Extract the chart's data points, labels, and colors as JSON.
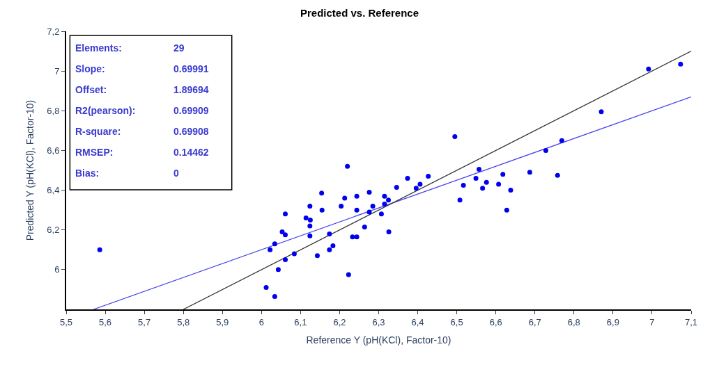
{
  "chart_data": {
    "type": "scatter",
    "title": "Predicted vs. Reference",
    "xlabel": "Reference Y (pH(KCl), Factor-10)",
    "ylabel": "Predicted Y (pH(KCl), Factor-10)",
    "xlim": [
      5.5,
      7.1
    ],
    "ylim": [
      5.8,
      7.2
    ],
    "xticks": [
      {
        "value": 5.5,
        "label": "5,5"
      },
      {
        "value": 5.6,
        "label": "5,6"
      },
      {
        "value": 5.7,
        "label": "5,7"
      },
      {
        "value": 5.8,
        "label": "5,8"
      },
      {
        "value": 5.9,
        "label": "5,9"
      },
      6,
      {
        "value": 6.1,
        "label": "6,1"
      },
      {
        "value": 6.2,
        "label": "6,2"
      },
      {
        "value": 6.3,
        "label": "6,3"
      },
      {
        "value": 6.4,
        "label": "6,4"
      },
      {
        "value": 6.5,
        "label": "6,5"
      },
      {
        "value": 6.6,
        "label": "6,6"
      },
      {
        "value": 6.7,
        "label": "6,7"
      },
      {
        "value": 6.8,
        "label": "6,8"
      },
      {
        "value": 6.9,
        "label": "6,9"
      },
      7,
      {
        "value": 7.1,
        "label": "7,1"
      }
    ],
    "yticks": [
      6,
      {
        "value": 6.2,
        "label": "6,2"
      },
      {
        "value": 6.4,
        "label": "6,4"
      },
      {
        "value": 6.6,
        "label": "6,6"
      },
      {
        "value": 6.8,
        "label": "6,8"
      },
      7,
      {
        "value": 7.2,
        "label": "7,2"
      }
    ],
    "marker": "circle",
    "annotations": [
      "Elements:",
      "29",
      "Slope:",
      "0.69991",
      "Offset:",
      "1.89694",
      "R2(pearson):",
      "0.69909",
      "R-square:",
      "0.69908",
      "RMSEP:",
      "0.14462",
      "Bias:",
      "0"
    ],
    "series": [
      {
        "type": "line",
        "marker": "none",
        "color": "#4444ee",
        "x": [
          5.57,
          7.1
        ],
        "values": [
          5.8,
          6.87
        ]
      },
      {
        "type": "line",
        "marker": "none",
        "color": "#333333",
        "x": [
          5.8,
          7.1
        ],
        "values": [
          5.8,
          7.1
        ]
      },
      {
        "color": "#0000ee",
        "x": [
          5.586,
          6.22,
          6.374,
          6.406,
          6.396,
          6.346,
          6.154,
          6.276,
          6.244,
          6.213,
          6.315,
          6.124,
          6.204,
          6.325,
          6.285,
          6.315,
          6.061,
          6.155,
          6.244,
          6.276,
          6.307,
          6.114,
          6.125,
          6.124,
          6.264,
          6.053,
          6.061,
          6.124,
          6.174,
          6.326,
          6.233,
          6.244,
          6.034,
          6.022,
          6.183,
          6.174,
          6.084,
          6.061,
          6.143,
          6.043,
          6.223,
          6.012,
          6.034,
          6.991,
          7.073,
          6.87,
          6.495,
          6.769,
          6.728,
          6.557,
          6.427,
          6.549,
          6.618,
          6.687,
          6.758,
          6.517,
          6.576,
          6.607,
          6.566,
          6.638,
          6.508,
          6.628
        ],
        "values": [
          6.1,
          6.52,
          6.46,
          6.43,
          6.41,
          6.414,
          6.385,
          6.39,
          6.37,
          6.36,
          6.37,
          6.32,
          6.32,
          6.35,
          6.32,
          6.33,
          6.28,
          6.3,
          6.3,
          6.29,
          6.28,
          6.26,
          6.25,
          6.22,
          6.215,
          6.19,
          6.175,
          6.17,
          6.18,
          6.19,
          6.165,
          6.165,
          6.13,
          6.1,
          6.12,
          6.1,
          6.08,
          6.05,
          6.07,
          6.0,
          5.975,
          5.91,
          5.865,
          7.01,
          7.035,
          6.795,
          6.67,
          6.65,
          6.6,
          6.505,
          6.47,
          6.46,
          6.48,
          6.49,
          6.475,
          6.425,
          6.44,
          6.43,
          6.41,
          6.4,
          6.35,
          6.3
        ]
      }
    ]
  }
}
